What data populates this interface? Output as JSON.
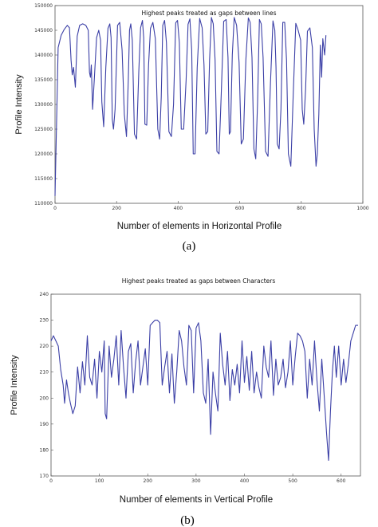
{
  "chart_data": [
    {
      "type": "line",
      "title": "Highest peaks treated as gaps between lines",
      "xlabel": "Number of elements in Horizontal Profile",
      "ylabel": "Profile Intensity",
      "caption": "(a)",
      "xlim": [
        0,
        1000
      ],
      "ylim": [
        110000,
        150000
      ],
      "xticks": [
        0,
        200,
        400,
        600,
        800,
        1000
      ],
      "yticks": [
        110000,
        115000,
        120000,
        125000,
        130000,
        135000,
        140000,
        145000,
        150000
      ],
      "grid": false,
      "series_color": "#3b3fa6",
      "x": [
        0,
        10,
        20,
        30,
        40,
        47,
        52,
        56,
        60,
        66,
        72,
        80,
        90,
        100,
        108,
        112,
        115,
        118,
        122,
        128,
        135,
        142,
        148,
        152,
        158,
        165,
        172,
        178,
        182,
        186,
        190,
        195,
        203,
        210,
        218,
        225,
        232,
        238,
        242,
        246,
        251,
        258,
        265,
        272,
        278,
        284,
        288,
        292,
        298,
        304,
        310,
        318,
        326,
        334,
        340,
        345,
        350,
        356,
        362,
        370,
        378,
        385,
        392,
        398,
        404,
        410,
        418,
        426,
        432,
        438,
        444,
        449,
        455,
        462,
        470,
        478,
        484,
        490,
        496,
        502,
        508,
        514,
        520,
        526,
        533,
        540,
        548,
        556,
        562,
        566,
        570,
        576,
        582,
        590,
        598,
        605,
        612,
        620,
        628,
        634,
        640,
        646,
        652,
        658,
        664,
        670,
        676,
        684,
        692,
        700,
        708,
        714,
        718,
        722,
        728,
        734,
        740,
        746,
        752,
        758,
        766,
        774,
        782,
        790,
        798,
        803,
        808,
        814,
        820,
        828,
        836,
        842,
        848,
        852,
        857,
        862,
        866,
        870,
        876,
        880
      ],
      "y": [
        111500,
        141500,
        144000,
        145200,
        146000,
        145500,
        139000,
        136000,
        137500,
        133500,
        143800,
        146000,
        146300,
        146000,
        145000,
        136500,
        135500,
        138000,
        129000,
        135500,
        143500,
        145000,
        143000,
        130500,
        125500,
        137500,
        145400,
        146300,
        143500,
        127000,
        125000,
        129000,
        146000,
        146600,
        141000,
        128000,
        123500,
        135000,
        145000,
        146300,
        143000,
        124000,
        123000,
        136500,
        145500,
        147000,
        143500,
        126000,
        125800,
        138000,
        145400,
        146600,
        143300,
        125000,
        123000,
        131500,
        146000,
        147000,
        142500,
        124500,
        123500,
        130000,
        146500,
        147000,
        142500,
        125000,
        125000,
        135000,
        146200,
        147300,
        141000,
        120000,
        120000,
        137500,
        147400,
        145500,
        138000,
        124000,
        124500,
        139000,
        147600,
        146300,
        139000,
        120500,
        120000,
        132000,
        146800,
        147200,
        139500,
        124000,
        124500,
        140000,
        147600,
        146000,
        138500,
        122000,
        123000,
        139000,
        147500,
        146600,
        139500,
        121000,
        119000,
        130500,
        147200,
        146300,
        139500,
        120500,
        119500,
        134500,
        146900,
        145000,
        137500,
        122000,
        121000,
        129000,
        146600,
        146600,
        139000,
        120000,
        117500,
        132500,
        146400,
        145000,
        143000,
        129000,
        126000,
        133000,
        144800,
        145500,
        141500,
        125000,
        117500,
        120000,
        128000,
        142000,
        135500,
        143300,
        140000,
        144000
      ]
    },
    {
      "type": "line",
      "title": "Highest peaks treated as gaps between Characters",
      "xlabel": "Number of elements in Vertical Profile",
      "ylabel": "Profile Intensity",
      "caption": "(b)",
      "xlim": [
        0,
        640
      ],
      "ylim": [
        170,
        240
      ],
      "xticks": [
        0,
        100,
        200,
        300,
        400,
        500,
        600
      ],
      "yticks": [
        170,
        180,
        190,
        200,
        210,
        220,
        230,
        240
      ],
      "grid": false,
      "series_color": "#3b3fa6",
      "x": [
        0,
        5,
        10,
        15,
        20,
        25,
        28,
        32,
        36,
        40,
        45,
        50,
        55,
        60,
        65,
        70,
        75,
        80,
        85,
        90,
        95,
        100,
        105,
        110,
        112,
        115,
        120,
        125,
        130,
        135,
        140,
        145,
        150,
        155,
        160,
        165,
        170,
        175,
        180,
        185,
        190,
        195,
        200,
        205,
        210,
        215,
        220,
        225,
        230,
        235,
        240,
        245,
        250,
        255,
        260,
        265,
        270,
        275,
        280,
        285,
        290,
        295,
        300,
        305,
        310,
        315,
        320,
        325,
        330,
        335,
        340,
        345,
        350,
        355,
        360,
        365,
        370,
        375,
        380,
        385,
        390,
        395,
        400,
        405,
        410,
        415,
        420,
        425,
        430,
        435,
        440,
        445,
        450,
        455,
        460,
        465,
        470,
        475,
        480,
        485,
        490,
        495,
        500,
        505,
        510,
        515,
        520,
        525,
        530,
        535,
        540,
        545,
        550,
        555,
        560,
        565,
        570,
        574,
        578,
        582,
        586,
        590,
        595,
        600,
        605,
        610,
        615,
        620,
        625,
        630,
        635
      ],
      "y": [
        222,
        224,
        222,
        220,
        211,
        205,
        198,
        207,
        202,
        198,
        194,
        197,
        212,
        202,
        214,
        205,
        224,
        208,
        205,
        215,
        200,
        218,
        210,
        222,
        194,
        192,
        220,
        208,
        215,
        224,
        205,
        226,
        212,
        200,
        218,
        221,
        202,
        214,
        222,
        205,
        212,
        219,
        205,
        228,
        229,
        230,
        230,
        229,
        205,
        212,
        218,
        202,
        217,
        198,
        210,
        226,
        222,
        212,
        205,
        228,
        226,
        202,
        227,
        229,
        222,
        202,
        198,
        215,
        186,
        210,
        202,
        195,
        225,
        213,
        205,
        218,
        199,
        211,
        205,
        213,
        202,
        222,
        206,
        216,
        203,
        218,
        202,
        210,
        204,
        200,
        220,
        212,
        208,
        222,
        201,
        215,
        205,
        208,
        215,
        204,
        210,
        222,
        205,
        216,
        225,
        224,
        222,
        218,
        200,
        215,
        205,
        222,
        207,
        195,
        215,
        201,
        186,
        176,
        195,
        210,
        220,
        208,
        220,
        205,
        215,
        206,
        213,
        222,
        225,
        228,
        228
      ]
    }
  ]
}
